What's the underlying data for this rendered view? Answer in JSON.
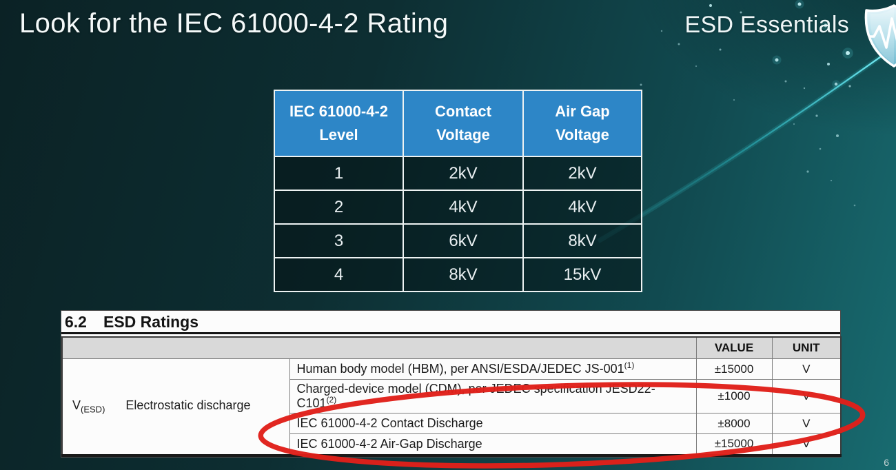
{
  "slide": {
    "title": "Look for the IEC 61000-4-2 Rating",
    "brand": "ESD Essentials",
    "page_number": "6"
  },
  "levels_table": {
    "headers": [
      "IEC 61000-4-2 Level",
      "Contact Voltage",
      "Air Gap Voltage"
    ],
    "rows": [
      [
        "1",
        "2kV",
        "2kV"
      ],
      [
        "2",
        "4kV",
        "4kV"
      ],
      [
        "3",
        "6kV",
        "8kV"
      ],
      [
        "4",
        "8kV",
        "15kV"
      ]
    ]
  },
  "datasheet": {
    "section": "6.2",
    "section_title": "ESD Ratings",
    "col_headers": {
      "value": "VALUE",
      "unit": "UNIT"
    },
    "symbol": "V",
    "symbol_sub": "(ESD)",
    "parameter": "Electrostatic discharge",
    "rows": [
      {
        "desc": "Human body model (HBM), per ANSI/ESDA/JEDEC JS-001",
        "sup": "(1)",
        "value": "±15000",
        "unit": "V"
      },
      {
        "desc": "Charged-device model (CDM), per JEDEC specification JESD22-",
        "desc2": "C101",
        "sup": "(2)",
        "value": "±1000",
        "unit": "V"
      },
      {
        "desc": "IEC 61000-4-2 Contact Discharge",
        "value": "±8000",
        "unit": "V"
      },
      {
        "desc": "IEC 61000-4-2 Air-Gap Discharge",
        "value": "±15000",
        "unit": "V"
      }
    ]
  },
  "colors": {
    "header_blue": "#2d86c7",
    "highlight_red": "#e0201a",
    "accent_cyan": "#5ee6f0"
  }
}
